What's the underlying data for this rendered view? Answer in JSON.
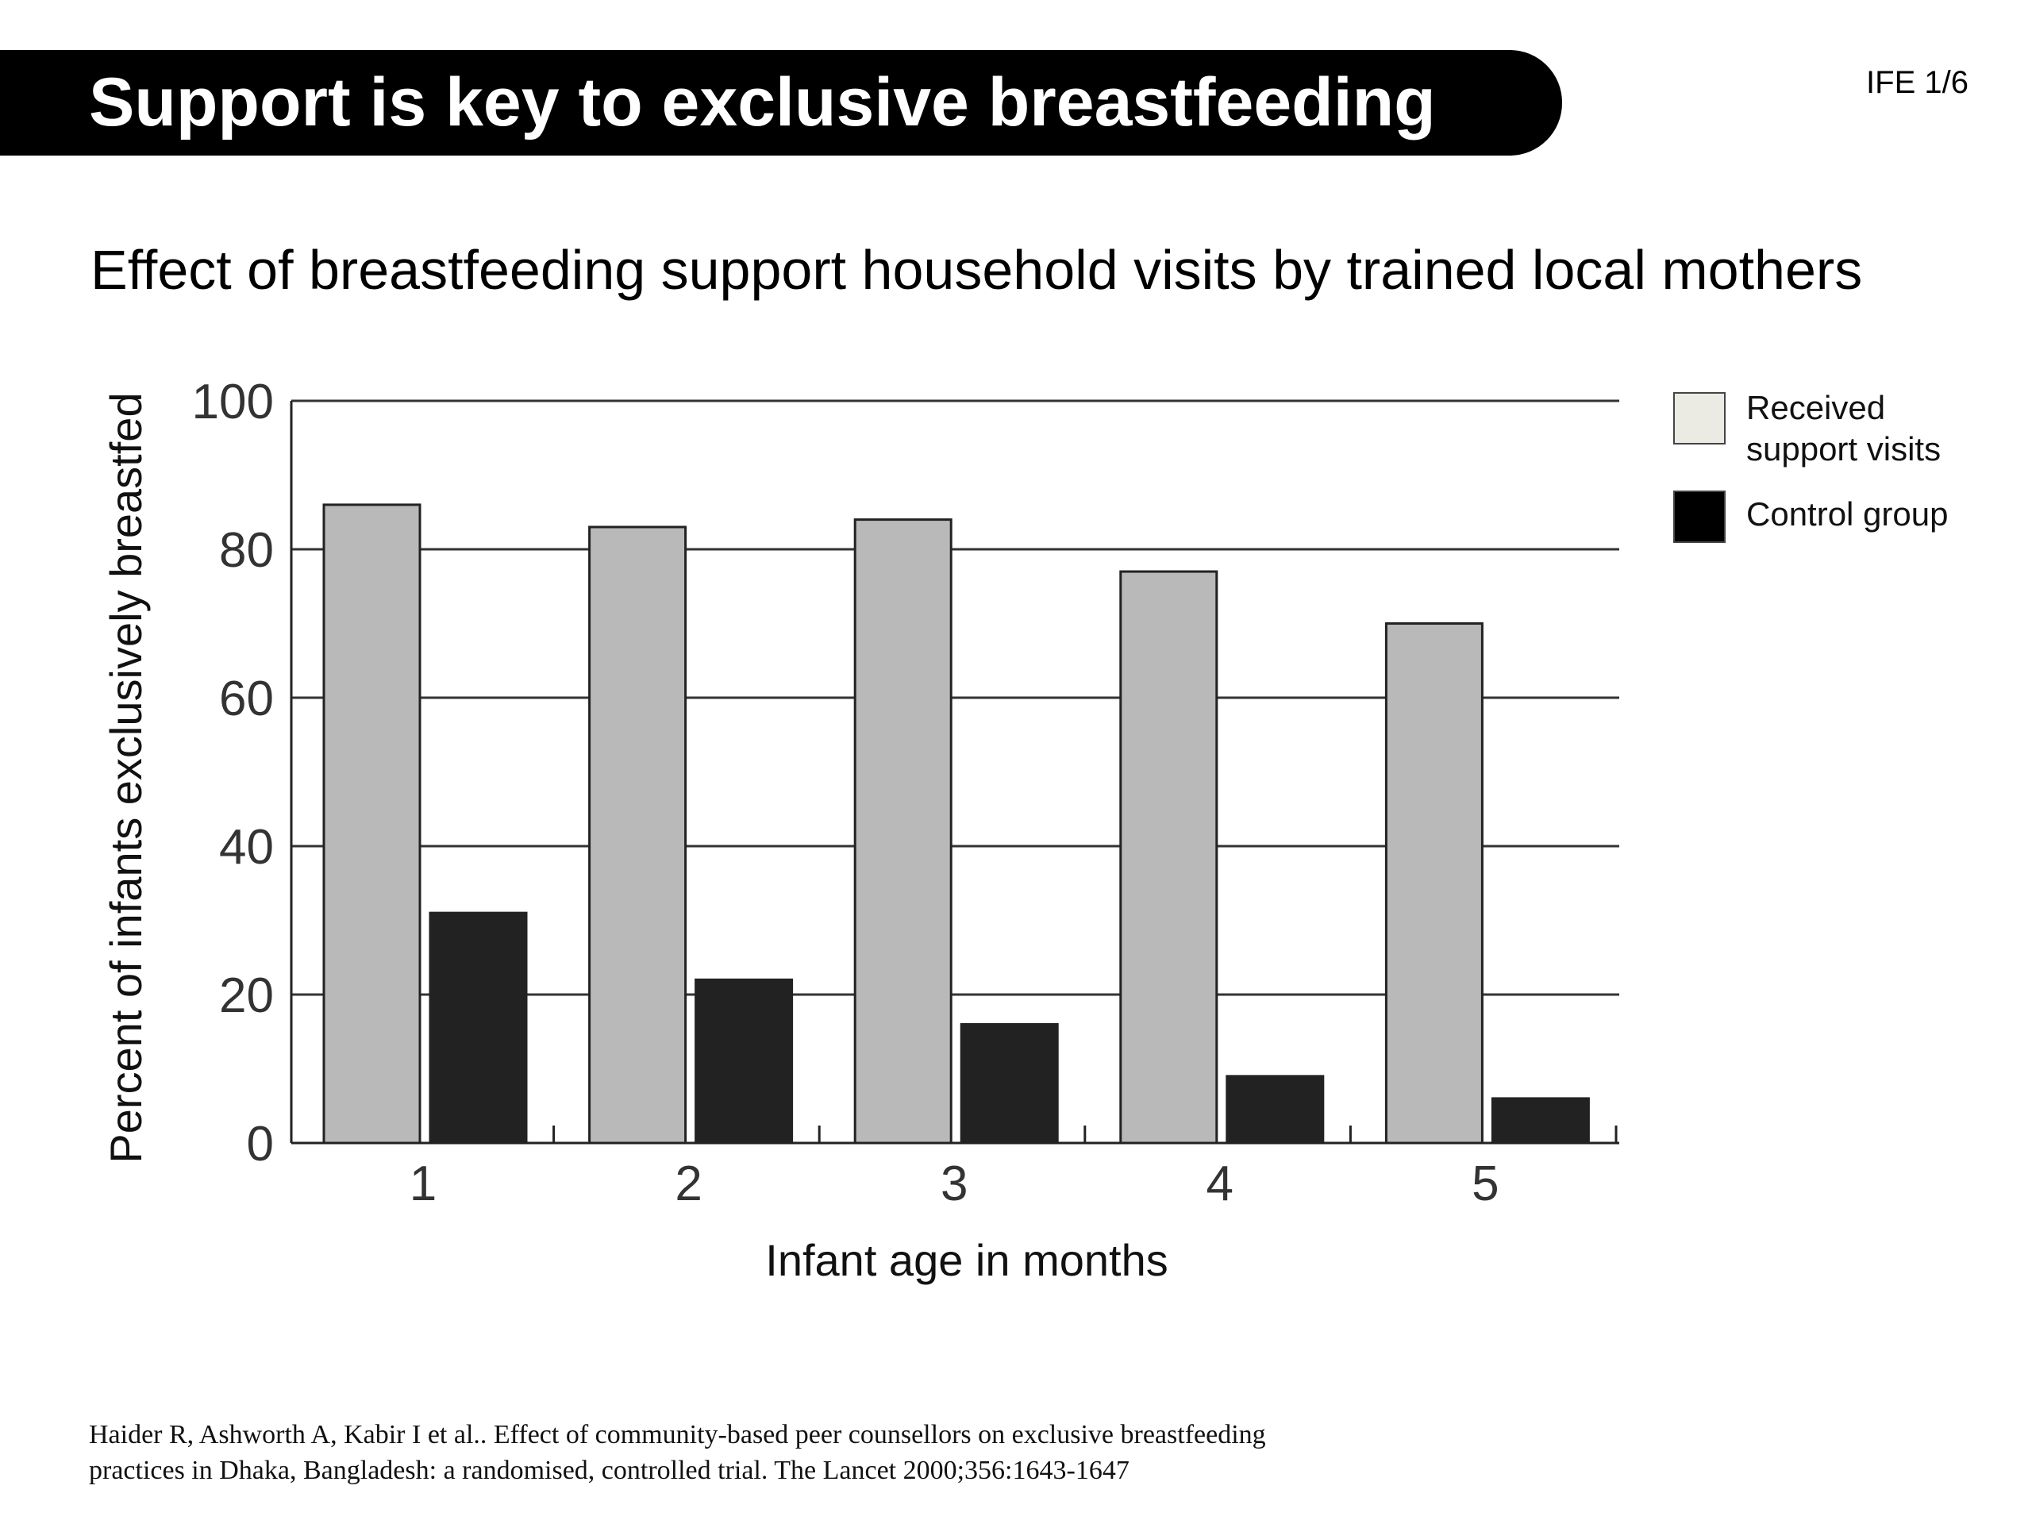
{
  "header": {
    "title": "Support is key to exclusive breastfeeding",
    "slide_id": "IFE 1/6"
  },
  "subtitle": "Effect of breastfeeding support household visits by trained local mothers",
  "colors": {
    "title_bar": "#000000",
    "support_bar": "#b9b9b9",
    "control_bar": "#222222",
    "legend_support_swatch": "#ebebe4",
    "legend_control_swatch": "#000000"
  },
  "legend": {
    "items": [
      {
        "label_lines": [
          "Received",
          "support visits"
        ]
      },
      {
        "label_lines": [
          "Control group"
        ]
      }
    ]
  },
  "citation": {
    "lines": [
      "Haider R, Ashworth A, Kabir I et al.. Effect of community-based peer counsellors on exclusive breastfeeding",
      "practices in Dhaka, Bangladesh: a randomised, controlled trial. The Lancet 2000;356:1643-1647"
    ]
  },
  "chart_data": {
    "type": "bar",
    "categories": [
      "1",
      "2",
      "3",
      "4",
      "5"
    ],
    "series": [
      {
        "name": "Received support visits",
        "values": [
          86,
          83,
          84,
          77,
          70
        ]
      },
      {
        "name": "Control group",
        "values": [
          31,
          22,
          16,
          9,
          6
        ]
      }
    ],
    "xlabel": "Infant age in months",
    "ylabel": "Percent of infants exclusively breastfed",
    "ylim": [
      0,
      100
    ],
    "yticks": [
      "0",
      "20",
      "40",
      "60",
      "80",
      "100"
    ],
    "grid": true,
    "legend_position": "right"
  }
}
